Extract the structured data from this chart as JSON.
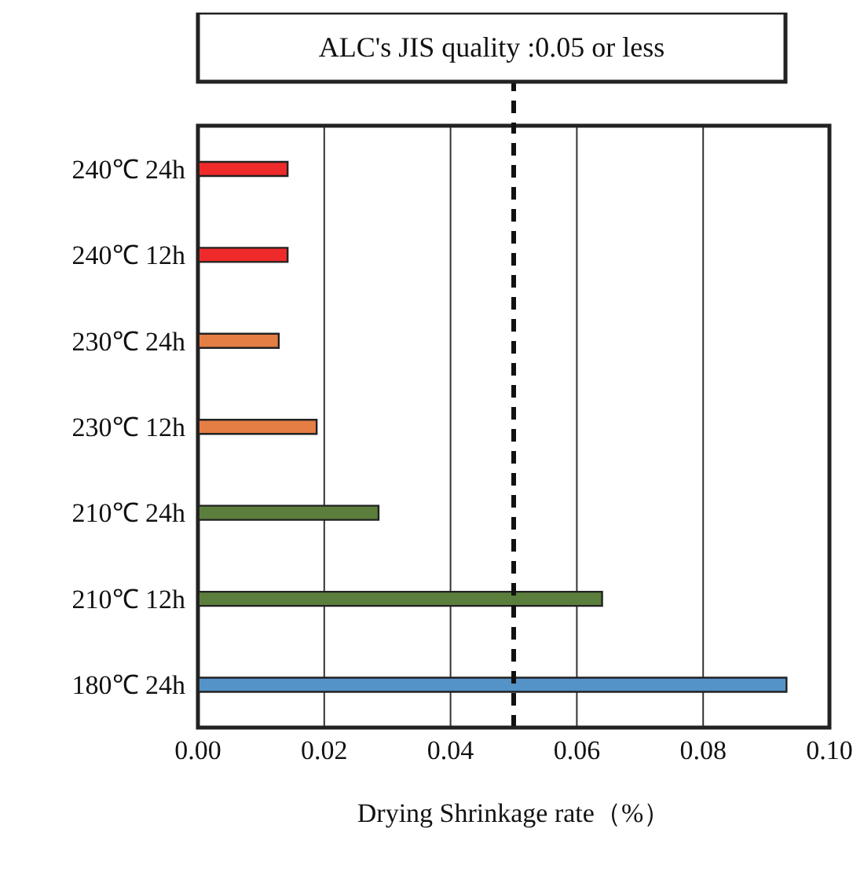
{
  "chart_data": {
    "type": "bar",
    "orientation": "horizontal",
    "xlabel": "Drying Shrinkage rate（%）",
    "categories": [
      "240℃ 24h",
      "240℃ 12h",
      "230℃ 24h",
      "230℃ 12h",
      "210℃ 24h",
      "210℃ 12h",
      "180℃ 24h"
    ],
    "values": [
      0.0142,
      0.0142,
      0.0128,
      0.0188,
      0.0286,
      0.064,
      0.0932
    ],
    "colors": [
      "#ee2b2a",
      "#ee2b2a",
      "#e57e45",
      "#e57e45",
      "#5c7e3c",
      "#5c7e3c",
      "#5493c8"
    ],
    "xlim": [
      0,
      0.1
    ],
    "xticks": [
      {
        "value": 0,
        "label": "0.00"
      },
      {
        "value": 0.02,
        "label": "0.02"
      },
      {
        "value": 0.04,
        "label": "0.04"
      },
      {
        "value": 0.06,
        "label": "0.06"
      },
      {
        "value": 0.08,
        "label": "0.08"
      },
      {
        "value": 0.1,
        "label": "0.10"
      }
    ],
    "grid": "x",
    "ref_lines": [
      {
        "axis": "x",
        "value": 0.05,
        "label": "ALC's JIS quality  :0.05 or less",
        "line_style": "dashed"
      }
    ]
  }
}
